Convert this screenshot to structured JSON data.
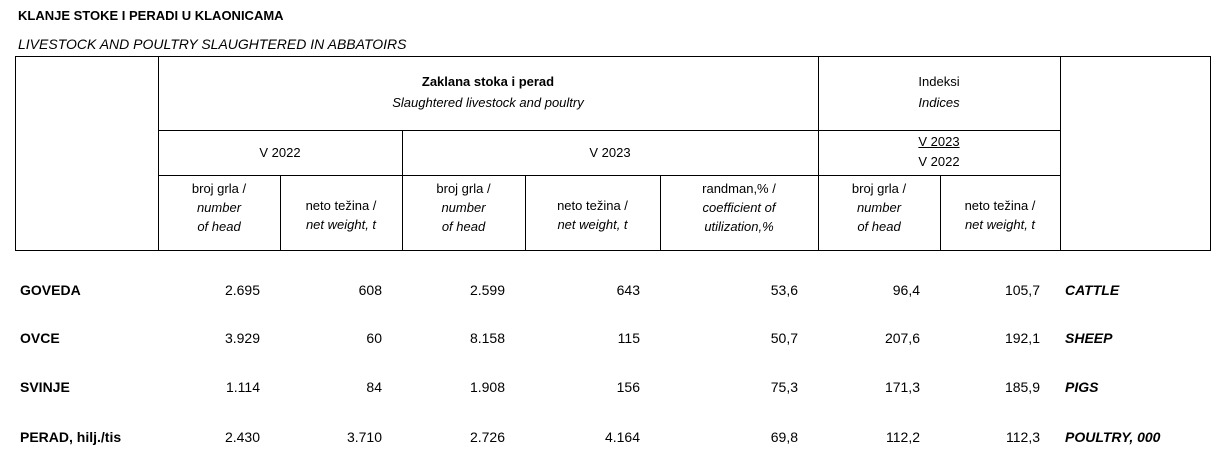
{
  "title": "KLANJE STOKE I PERADI U KLAONICAMA",
  "subtitle": "LIVESTOCK AND POULTRY SLAUGHTERED IN ABBATOIRS",
  "header": {
    "group_main": {
      "hr": "Zaklana stoka i perad",
      "en": "Slaughtered livestock and poultry"
    },
    "group_index": {
      "hr": "Indeksi",
      "en": "Indices"
    },
    "periods": [
      "V 2022",
      "V 2023"
    ],
    "index_ratio": {
      "numerator": "V 2023",
      "denominator": "V 2022"
    },
    "columns": [
      {
        "hr": "broj grla /",
        "en": [
          "number",
          "of head"
        ]
      },
      {
        "hr": "neto težina /",
        "en": [
          "net weight, t"
        ]
      },
      {
        "hr": "broj grla /",
        "en": [
          "number",
          "of head"
        ]
      },
      {
        "hr": "neto težina /",
        "en": [
          "net weight, t"
        ]
      },
      {
        "hr": "randman,% /",
        "en": [
          "coefficient of",
          "utilization,%"
        ]
      },
      {
        "hr": "broj grla /",
        "en": [
          "number",
          "of head"
        ]
      },
      {
        "hr": "neto težina /",
        "en": [
          "net weight, t"
        ]
      }
    ]
  },
  "rows": [
    {
      "label_hr": "GOVEDA",
      "label_en": "CATTLE",
      "values": [
        "2.695",
        "608",
        "2.599",
        "643",
        "53,6",
        "96,4",
        "105,7"
      ]
    },
    {
      "label_hr": "OVCE",
      "label_en": "SHEEP",
      "values": [
        "3.929",
        "60",
        "8.158",
        "115",
        "50,7",
        "207,6",
        "192,1"
      ]
    },
    {
      "label_hr": "SVINJE",
      "label_en": "PIGS",
      "values": [
        "1.114",
        "84",
        "1.908",
        "156",
        "75,3",
        "171,3",
        "185,9"
      ]
    },
    {
      "label_hr": "PERAD, hilj./tis",
      "label_en": "POULTRY, 000",
      "values": [
        "2.430",
        "3.710",
        "2.726",
        "4.164",
        "69,8",
        "112,2",
        "112,3"
      ]
    }
  ]
}
